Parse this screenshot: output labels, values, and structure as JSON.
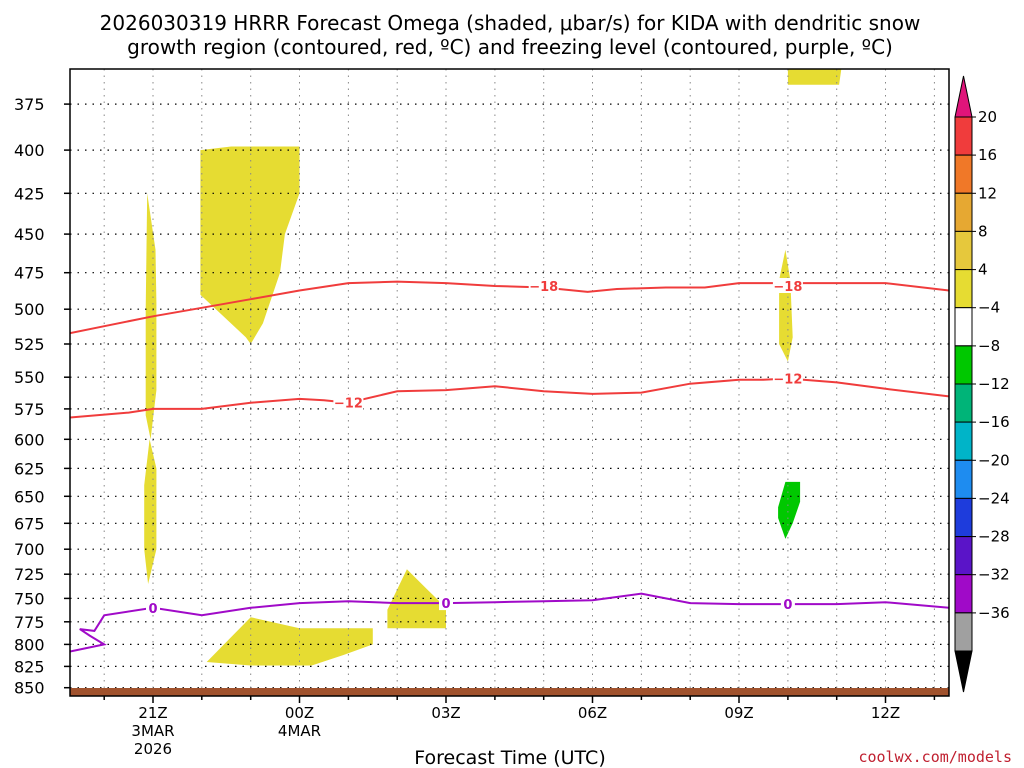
{
  "title": {
    "line1": "2026030319 HRRR Forecast Omega (shaded, μbar/s) for KIDA with dendritic snow",
    "line2": "growth region (contoured, red, ºC) and freezing level (contoured, purple, ºC)"
  },
  "credit": "coolwx.com/models",
  "chart_data": {
    "type": "heatmap",
    "title": "2026030319 HRRR Forecast Omega (shaded, μbar/s) for KIDA with dendritic snow growth region (contoured, red, ºC) and freezing level (contoured, purple, ºC)",
    "xlabel": "Forecast Time (UTC)",
    "ylabel": "",
    "grid": true,
    "y_axis": {
      "scale": "log",
      "reversed": true,
      "range": [
        357,
        860
      ],
      "ticks": [
        375,
        400,
        425,
        450,
        475,
        500,
        525,
        550,
        575,
        600,
        625,
        650,
        675,
        700,
        725,
        750,
        775,
        800,
        825,
        850
      ]
    },
    "x_axis": {
      "range_hours": [
        19.3,
        37.3
      ],
      "ticks": [
        {
          "hour": 21,
          "label": "21Z",
          "sub": [
            "3MAR",
            "2026"
          ]
        },
        {
          "hour": 24,
          "label": "00Z",
          "sub": [
            "4MAR"
          ]
        },
        {
          "hour": 27,
          "label": "03Z",
          "sub": []
        },
        {
          "hour": 30,
          "label": "06Z",
          "sub": []
        },
        {
          "hour": 33,
          "label": "09Z",
          "sub": []
        },
        {
          "hour": 36,
          "label": "12Z",
          "sub": []
        }
      ]
    },
    "colorbar": {
      "labels": [
        "20",
        "16",
        "12",
        "8",
        "4",
        "−4",
        "−8",
        "−12",
        "−16",
        "−20",
        "−24",
        "−28",
        "−32",
        "−36"
      ],
      "colors": [
        "#f03c3c",
        "#f07828",
        "#e6a832",
        "#e6c83c",
        "#e6dc32",
        "#ffffff",
        "#00c800",
        "#00b478",
        "#00b4c8",
        "#1e8cf0",
        "#1e3cdc",
        "#5a14c8",
        "#a00ac8",
        "#a0a0a0"
      ],
      "top_arrow_color": "#e0147a",
      "bottom_arrow_color": "#000000"
    },
    "omega_regions": [
      {
        "name": "omega-region-a",
        "range": "4 to 8",
        "color": "#e6dc32",
        "points": [
          [
            20.88,
            425
          ],
          [
            21.05,
            460
          ],
          [
            21.07,
            495
          ],
          [
            21.07,
            560
          ],
          [
            20.95,
            600
          ],
          [
            20.85,
            580
          ],
          [
            20.85,
            500
          ]
        ]
      },
      {
        "name": "omega-region-b",
        "range": "4 to 8",
        "color": "#e6dc32",
        "points": [
          [
            20.93,
            600
          ],
          [
            21.07,
            625
          ],
          [
            21.07,
            700
          ],
          [
            20.9,
            735
          ],
          [
            20.82,
            700
          ],
          [
            20.82,
            640
          ]
        ]
      },
      {
        "name": "omega-region-c",
        "range": "4 to 8",
        "color": "#e6dc32",
        "points": [
          [
            21.97,
            400
          ],
          [
            22.6,
            398
          ],
          [
            24.0,
            398
          ],
          [
            24.0,
            425
          ],
          [
            23.7,
            450
          ],
          [
            23.6,
            475
          ],
          [
            23.25,
            510
          ],
          [
            23.0,
            525
          ],
          [
            22.9,
            520
          ],
          [
            21.97,
            490
          ]
        ]
      },
      {
        "name": "omega-region-d",
        "range": "4 to 8",
        "color": "#e6dc32",
        "points": [
          [
            23.0,
            770
          ],
          [
            24.0,
            782
          ],
          [
            25.5,
            782
          ],
          [
            25.5,
            800
          ],
          [
            24.9,
            812
          ],
          [
            24.25,
            824
          ],
          [
            23.0,
            824
          ],
          [
            22.1,
            820
          ]
        ]
      },
      {
        "name": "omega-region-e",
        "range": "4 to 8",
        "color": "#e6dc32",
        "points": [
          [
            25.8,
            762
          ],
          [
            26.2,
            720
          ],
          [
            26.6,
            740
          ],
          [
            27.0,
            760
          ],
          [
            27.0,
            782
          ],
          [
            25.8,
            782
          ]
        ]
      },
      {
        "name": "omega-region-f",
        "range": "4 to 8",
        "color": "#e6dc32",
        "points": [
          [
            34.0,
            356
          ],
          [
            35.1,
            356
          ],
          [
            35.05,
            365
          ],
          [
            34.0,
            365
          ]
        ]
      },
      {
        "name": "omega-region-g",
        "range": "4 to 8",
        "color": "#e6dc32",
        "points": [
          [
            33.95,
            460
          ],
          [
            34.05,
            480
          ],
          [
            34.1,
            520
          ],
          [
            34.0,
            538
          ],
          [
            33.82,
            525
          ],
          [
            33.82,
            480
          ]
        ]
      },
      {
        "name": "omega-region-h",
        "range": "−4 to −8",
        "color": "#00c800",
        "points": [
          [
            33.95,
            637
          ],
          [
            34.25,
            637
          ],
          [
            34.25,
            655
          ],
          [
            34.1,
            675
          ],
          [
            33.95,
            690
          ],
          [
            33.8,
            670
          ],
          [
            33.8,
            660
          ]
        ]
      }
    ],
    "contours": [
      {
        "name": "-18",
        "label": "−18",
        "color": "#f03c3c",
        "points": [
          [
            19.3,
            517
          ],
          [
            20.0,
            512
          ],
          [
            21.0,
            505
          ],
          [
            22.0,
            499
          ],
          [
            23.0,
            493
          ],
          [
            24.0,
            487
          ],
          [
            25.0,
            482
          ],
          [
            26.0,
            481
          ],
          [
            27.0,
            482
          ],
          [
            28.0,
            484
          ],
          [
            29.0,
            485
          ],
          [
            29.9,
            488
          ],
          [
            30.5,
            486
          ],
          [
            31.5,
            485
          ],
          [
            32.3,
            485
          ],
          [
            33.0,
            482
          ],
          [
            34.0,
            482
          ],
          [
            35.0,
            482
          ],
          [
            36.0,
            482
          ],
          [
            37.3,
            487
          ]
        ],
        "label_points": [
          [
            29.0,
            484
          ],
          [
            34.0,
            484
          ]
        ]
      },
      {
        "name": "-12",
        "label": "−12",
        "color": "#f03c3c",
        "points": [
          [
            19.3,
            582
          ],
          [
            20.5,
            578
          ],
          [
            21.0,
            575
          ],
          [
            22.0,
            575
          ],
          [
            23.0,
            570
          ],
          [
            24.0,
            567
          ],
          [
            24.5,
            568
          ],
          [
            25.0,
            570
          ],
          [
            26.0,
            561
          ],
          [
            27.0,
            560
          ],
          [
            28.0,
            557
          ],
          [
            29.0,
            561
          ],
          [
            30.0,
            563
          ],
          [
            31.0,
            562
          ],
          [
            32.0,
            555
          ],
          [
            33.0,
            552
          ],
          [
            33.5,
            552
          ],
          [
            34.0,
            551
          ],
          [
            35.0,
            554
          ],
          [
            36.0,
            559
          ],
          [
            37.3,
            565
          ]
        ],
        "label_points": [
          [
            25.0,
            570
          ],
          [
            34.0,
            551
          ]
        ]
      },
      {
        "name": "0",
        "label": "0",
        "color": "#a00ac8",
        "points": [
          [
            19.3,
            808
          ],
          [
            20.0,
            800
          ],
          [
            19.7,
            790
          ],
          [
            19.5,
            783
          ],
          [
            19.8,
            785
          ],
          [
            20.0,
            768
          ],
          [
            21.0,
            760
          ],
          [
            22.0,
            768
          ],
          [
            23.0,
            760
          ],
          [
            24.0,
            755
          ],
          [
            25.0,
            753
          ],
          [
            26.0,
            755
          ],
          [
            27.0,
            755
          ],
          [
            28.0,
            754
          ],
          [
            29.0,
            753
          ],
          [
            30.0,
            752
          ],
          [
            31.0,
            745
          ],
          [
            32.0,
            755
          ],
          [
            33.0,
            756
          ],
          [
            34.0,
            756
          ],
          [
            35.0,
            756
          ],
          [
            36.0,
            754
          ],
          [
            37.3,
            760
          ]
        ],
        "label_points": [
          [
            21.0,
            760
          ],
          [
            27.0,
            755
          ],
          [
            34.0,
            756
          ]
        ]
      }
    ]
  }
}
